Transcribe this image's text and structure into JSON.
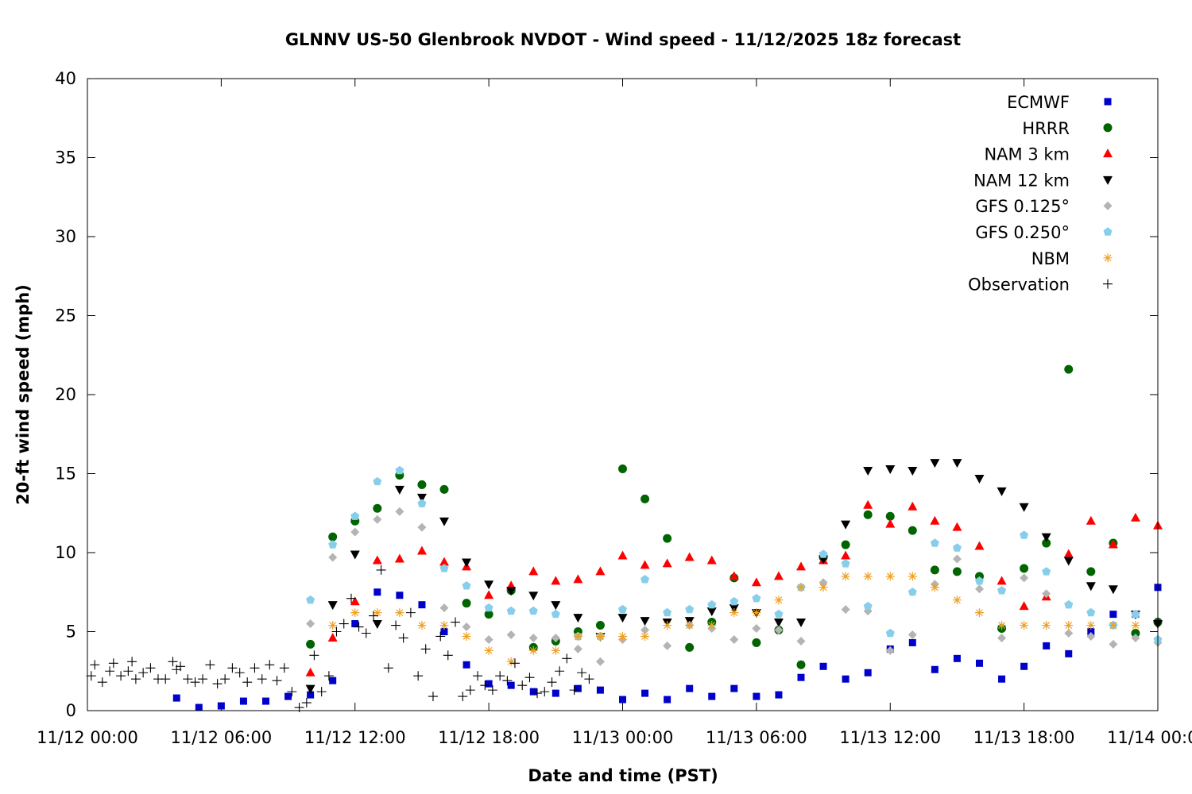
{
  "chart_data": {
    "type": "scatter",
    "title": "GLNNV US-50 Glenbrook NVDOT - Wind speed - 11/12/2025 18z forecast",
    "xlabel": "Date and time (PST)",
    "ylabel": "20-ft wind speed (mph)",
    "x_unit": "hours since 11/12 00:00 PST",
    "xlim": [
      0,
      48
    ],
    "ylim": [
      0,
      40
    ],
    "x_ticks": [
      {
        "value": 0,
        "label": "11/12 00:00"
      },
      {
        "value": 6,
        "label": "11/12 06:00"
      },
      {
        "value": 12,
        "label": "11/12 12:00"
      },
      {
        "value": 18,
        "label": "11/12 18:00"
      },
      {
        "value": 24,
        "label": "11/13 00:00"
      },
      {
        "value": 30,
        "label": "11/13 06:00"
      },
      {
        "value": 36,
        "label": "11/13 12:00"
      },
      {
        "value": 42,
        "label": "11/13 18:00"
      },
      {
        "value": 48,
        "label": "11/14 00:00"
      }
    ],
    "y_ticks": [
      0,
      5,
      10,
      15,
      20,
      25,
      30,
      35,
      40
    ],
    "grid": false,
    "legend_position": "top-right",
    "series": [
      {
        "name": "ECMWF",
        "marker": "square",
        "color": "#0000cc",
        "x": [
          4,
          5,
          6,
          7,
          8,
          9,
          10,
          11,
          12,
          13,
          14,
          15,
          16,
          17,
          18,
          19,
          20,
          21,
          22,
          23,
          24,
          25,
          26,
          27,
          28,
          29,
          30,
          31,
          32,
          33,
          34,
          35,
          36,
          37,
          38,
          39,
          40,
          41,
          42,
          43,
          44,
          45,
          46,
          47,
          48
        ],
        "y": [
          0.8,
          0.2,
          0.3,
          0.6,
          0.6,
          0.9,
          1.0,
          1.9,
          5.5,
          7.5,
          7.3,
          6.7,
          5.0,
          2.9,
          1.7,
          1.6,
          1.2,
          1.1,
          1.4,
          1.3,
          0.7,
          1.1,
          0.7,
          1.4,
          0.9,
          1.4,
          0.9,
          1.0,
          2.1,
          2.8,
          2.0,
          2.4,
          3.9,
          4.3,
          2.6,
          3.3,
          3.0,
          2.0,
          2.8,
          4.1,
          3.6,
          5.0,
          6.1,
          6.1,
          7.8
        ]
      },
      {
        "name": "HRRR",
        "marker": "circle",
        "color": "#006400",
        "x": [
          10,
          11,
          12,
          13,
          14,
          15,
          16,
          17,
          18,
          19,
          20,
          21,
          22,
          23,
          24,
          25,
          26,
          27,
          28,
          29,
          30,
          31,
          32,
          33,
          34,
          35,
          36,
          37,
          38,
          39,
          40,
          41,
          42,
          43,
          44,
          45,
          46,
          47,
          48
        ],
        "y": [
          4.2,
          11.0,
          12.0,
          12.8,
          14.9,
          14.3,
          14.0,
          6.8,
          6.1,
          7.6,
          4.0,
          4.4,
          5.0,
          5.4,
          15.3,
          13.4,
          10.9,
          4.0,
          5.6,
          8.4,
          4.3,
          5.1,
          2.9,
          9.7,
          10.5,
          12.4,
          12.3,
          11.4,
          8.9,
          8.8,
          8.5,
          5.2,
          9.0,
          10.6,
          21.6,
          8.8,
          10.6,
          4.9,
          5.6
        ]
      },
      {
        "name": "NAM 3 km",
        "marker": "triangle-up",
        "color": "#ff0000",
        "x": [
          10,
          11,
          12,
          13,
          14,
          15,
          16,
          17,
          18,
          19,
          20,
          21,
          22,
          23,
          24,
          25,
          26,
          27,
          28,
          29,
          30,
          31,
          32,
          33,
          34,
          35,
          36,
          37,
          38,
          39,
          40,
          41,
          42,
          43,
          44,
          45,
          46,
          47,
          48
        ],
        "y": [
          2.4,
          4.6,
          6.9,
          9.5,
          9.6,
          10.1,
          9.4,
          9.1,
          7.3,
          7.9,
          8.8,
          8.2,
          8.3,
          8.8,
          9.8,
          9.2,
          9.3,
          9.7,
          9.5,
          8.5,
          8.1,
          8.5,
          9.1,
          9.5,
          9.8,
          13.0,
          11.8,
          12.9,
          12.0,
          11.6,
          10.4,
          8.2,
          6.6,
          7.2,
          9.9,
          12.0,
          10.5,
          12.2,
          11.7
        ]
      },
      {
        "name": "NAM 12 km",
        "marker": "triangle-down",
        "color": "#000000",
        "x": [
          10,
          11,
          12,
          13,
          14,
          15,
          16,
          17,
          18,
          19,
          20,
          21,
          22,
          23,
          24,
          25,
          26,
          27,
          28,
          29,
          30,
          31,
          32,
          33,
          34,
          35,
          36,
          37,
          38,
          39,
          40,
          41,
          42,
          43,
          44,
          45,
          46,
          47,
          48
        ],
        "y": [
          1.4,
          6.7,
          9.9,
          5.5,
          14.0,
          13.5,
          12.0,
          9.4,
          8.0,
          7.6,
          7.3,
          6.7,
          5.9,
          4.7,
          5.9,
          5.7,
          5.6,
          5.7,
          6.3,
          6.5,
          6.2,
          5.6,
          5.6,
          9.6,
          11.8,
          15.2,
          15.3,
          15.2,
          15.7,
          15.7,
          14.7,
          13.9,
          12.9,
          11.0,
          9.5,
          7.9,
          7.7,
          6.1,
          5.5
        ]
      },
      {
        "name": "GFS 0.125°",
        "marker": "diamond",
        "color": "#b4b4b4",
        "x": [
          10,
          11,
          12,
          13,
          14,
          15,
          16,
          17,
          18,
          19,
          20,
          21,
          22,
          23,
          24,
          25,
          26,
          27,
          28,
          29,
          30,
          31,
          32,
          33,
          34,
          35,
          36,
          37,
          38,
          39,
          40,
          41,
          42,
          43,
          44,
          45,
          46,
          47,
          48
        ],
        "y": [
          5.5,
          9.7,
          11.3,
          12.1,
          12.6,
          11.6,
          6.5,
          5.3,
          4.5,
          4.8,
          4.6,
          4.6,
          3.9,
          3.1,
          4.5,
          5.1,
          4.1,
          5.4,
          5.2,
          4.5,
          5.2,
          5.1,
          4.4,
          8.1,
          6.4,
          6.3,
          3.8,
          4.8,
          8.0,
          9.6,
          7.7,
          4.6,
          8.4,
          7.4,
          4.9,
          4.7,
          4.2,
          4.6,
          4.3
        ]
      },
      {
        "name": "GFS 0.250°",
        "marker": "pentagon",
        "color": "#87ceeb",
        "x": [
          10,
          11,
          12,
          13,
          14,
          15,
          16,
          17,
          18,
          19,
          20,
          21,
          22,
          23,
          24,
          25,
          26,
          27,
          28,
          29,
          30,
          31,
          32,
          33,
          34,
          35,
          36,
          37,
          38,
          39,
          40,
          41,
          42,
          43,
          44,
          45,
          46,
          47,
          48
        ],
        "y": [
          7.0,
          10.5,
          12.3,
          14.5,
          15.2,
          13.1,
          9.0,
          7.9,
          6.5,
          6.3,
          6.3,
          6.1,
          4.7,
          4.7,
          6.4,
          8.3,
          6.2,
          6.4,
          6.7,
          6.9,
          7.1,
          6.1,
          7.8,
          9.9,
          9.3,
          6.6,
          4.9,
          7.5,
          10.6,
          10.3,
          8.2,
          7.6,
          11.1,
          8.8,
          6.7,
          6.2,
          5.4,
          6.1,
          4.5
        ]
      },
      {
        "name": "NBM",
        "marker": "asterisk",
        "color": "#f0a020",
        "x": [
          11,
          12,
          13,
          14,
          15,
          16,
          17,
          18,
          19,
          20,
          21,
          22,
          23,
          24,
          25,
          26,
          27,
          28,
          29,
          30,
          31,
          32,
          33,
          34,
          35,
          36,
          37,
          38,
          39,
          40,
          41,
          42,
          43,
          44,
          45,
          46,
          47
        ],
        "y": [
          5.4,
          6.2,
          6.2,
          6.2,
          5.4,
          5.4,
          4.7,
          3.8,
          3.1,
          3.8,
          3.8,
          4.7,
          4.7,
          4.7,
          4.7,
          5.4,
          5.4,
          5.4,
          6.2,
          6.2,
          7.0,
          7.8,
          7.8,
          8.5,
          8.5,
          8.5,
          8.5,
          7.8,
          7.0,
          6.2,
          5.4,
          5.4,
          5.4,
          5.4,
          5.4,
          5.4,
          5.4
        ]
      },
      {
        "name": "Observation",
        "marker": "plus",
        "color": "#000000",
        "x": [
          0.17,
          0.33,
          0.67,
          1.0,
          1.17,
          1.5,
          1.83,
          2.0,
          2.17,
          2.5,
          2.83,
          3.17,
          3.5,
          3.83,
          4.0,
          4.17,
          4.5,
          4.83,
          5.17,
          5.5,
          5.83,
          6.17,
          6.5,
          6.83,
          7.17,
          7.5,
          7.83,
          8.17,
          8.5,
          8.83,
          9.17,
          9.5,
          9.83,
          10.17,
          10.5,
          10.83,
          11.17,
          11.5,
          11.83,
          12.17,
          12.5,
          12.83,
          13.17,
          13.5,
          13.83,
          14.17,
          14.5,
          14.83,
          15.17,
          15.5,
          15.83,
          16.17,
          16.5,
          16.83,
          17.17,
          17.5,
          17.83,
          18.17,
          18.5,
          18.83,
          19.17,
          19.5,
          19.83,
          20.17,
          20.5,
          20.83,
          21.17,
          21.5,
          21.83,
          22.17,
          22.5
        ],
        "y": [
          2.2,
          2.9,
          1.8,
          2.5,
          3.0,
          2.2,
          2.5,
          3.1,
          2.0,
          2.4,
          2.7,
          2.0,
          2.0,
          3.1,
          2.6,
          2.8,
          2.0,
          1.8,
          2.0,
          2.9,
          1.7,
          2.0,
          2.7,
          2.4,
          1.8,
          2.7,
          2.0,
          2.9,
          1.9,
          2.7,
          1.2,
          0.2,
          0.5,
          3.5,
          1.2,
          2.2,
          5.0,
          5.5,
          7.1,
          5.3,
          4.9,
          6.0,
          8.9,
          2.7,
          5.4,
          4.6,
          6.2,
          2.2,
          3.9,
          0.9,
          4.7,
          3.5,
          5.6,
          0.9,
          1.3,
          2.2,
          1.6,
          1.3,
          2.2,
          1.9,
          3.0,
          1.6,
          2.1,
          1.1,
          1.2,
          1.8,
          2.5,
          3.3,
          1.3,
          2.4,
          2.0
        ]
      }
    ]
  }
}
